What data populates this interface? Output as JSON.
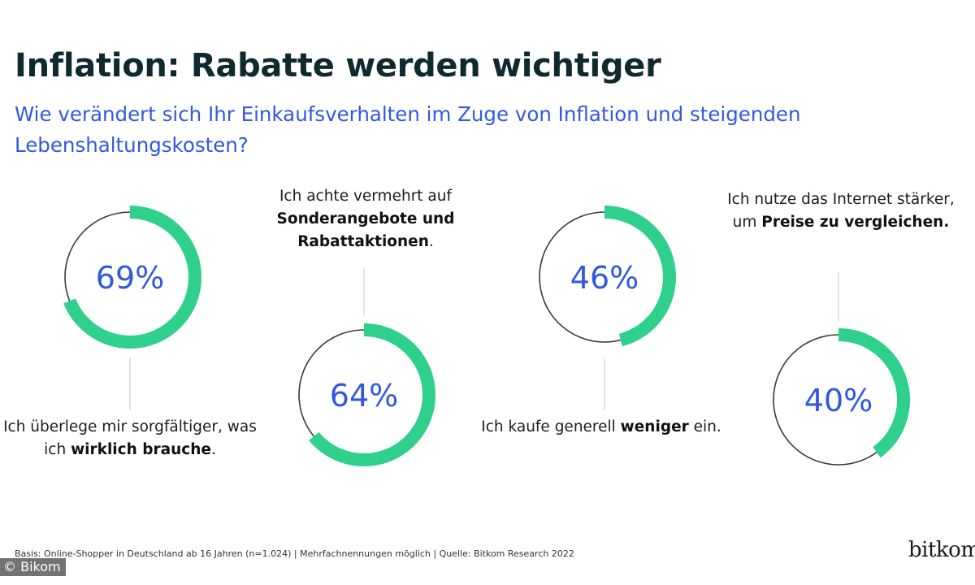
{
  "title": "Inflation: Rabatte werden wichtiger",
  "subtitle": "Wie verändert sich Ihr Einkaufsverhalten im Zuge von Inflation und steigenden Lebenshaltungskosten?",
  "chart_data": {
    "type": "donut",
    "title": "Inflation: Rabatte werden wichtiger",
    "series": [
      {
        "name": "sorgfaeltiger",
        "label_parts": [
          {
            "t": "Ich überlege mir sorgfältiger, was ich ",
            "b": false
          },
          {
            "t": "wirklich brauche",
            "b": true
          },
          {
            "t": ".",
            "b": false
          }
        ],
        "value": 69,
        "display": "69%"
      },
      {
        "name": "sonderangebote",
        "label_parts": [
          {
            "t": "Ich achte vermehrt auf ",
            "b": false
          },
          {
            "t": "Sonderangebote und Rabattaktionen",
            "b": true
          },
          {
            "t": ".",
            "b": false
          }
        ],
        "value": 64,
        "display": "64%"
      },
      {
        "name": "weniger",
        "label_parts": [
          {
            "t": "Ich kaufe generell ",
            "b": false
          },
          {
            "t": "weniger",
            "b": true
          },
          {
            "t": " ein.",
            "b": false
          }
        ],
        "value": 46,
        "display": "46%"
      },
      {
        "name": "preise",
        "label_parts": [
          {
            "t": "Ich nutze das Internet stärker, um ",
            "b": false
          },
          {
            "t": "Preise zu vergleichen.",
            "b": true
          }
        ],
        "value": 40,
        "display": "40%"
      }
    ],
    "colors": {
      "arc": "#2fcf8c",
      "track": "#3a3a3a",
      "value_text": "#3358e0"
    }
  },
  "footer": "Basis: Online-Shopper in Deutschland ab 16 Jahren (n=1.024) | Mehrfachnennungen möglich | Quelle: Bitkom Research 2022",
  "logo": "bitkom",
  "copyright": "© Bikom"
}
